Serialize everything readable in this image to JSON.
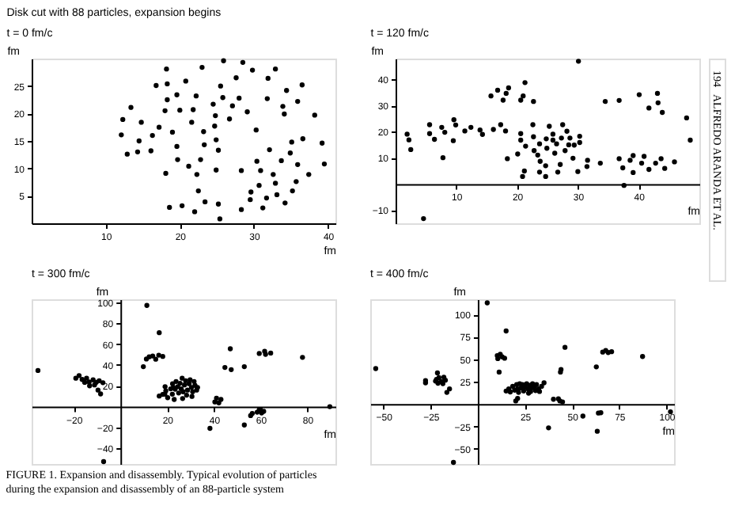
{
  "chart_data": [
    {
      "type": "scatter",
      "title": "Disk cut with 88 particles, expansion begins",
      "subtitle": "t = 0 fm/c",
      "xlabel": "fm",
      "ylabel": "fm",
      "color": "#000000",
      "marker": "circle",
      "grid": false,
      "xlim": [
        0,
        41
      ],
      "ylim": [
        0,
        30
      ],
      "xticks": [
        10,
        20,
        30,
        40
      ],
      "yticks": [
        5,
        10,
        15,
        20,
        25
      ],
      "x": [
        18.2,
        23.0,
        25.9,
        28.5,
        29.8,
        32.9,
        20.8,
        16.8,
        18.3,
        25.5,
        27.6,
        31.9,
        36.5,
        34.4,
        19.6,
        22.2,
        18.3,
        25.8,
        28.0,
        31.8,
        35.9,
        13.4,
        18.0,
        20.0,
        21.8,
        24.5,
        27.1,
        29.1,
        33.9,
        34.1,
        38.2,
        12.3,
        14.8,
        21.6,
        24.8,
        26.7,
        17.2,
        19.0,
        23.2,
        24.7,
        30.3,
        12.1,
        16.3,
        14.5,
        19.6,
        23.3,
        24.9,
        35.1,
        36.6,
        39.2,
        12.9,
        14.3,
        16.1,
        25.2,
        32.1,
        34.9,
        19.7,
        22.8,
        30.4,
        33.7,
        21.2,
        24.9,
        28.3,
        30.9,
        35.9,
        39.5,
        18.1,
        22.3,
        32.6,
        37.4,
        30.7,
        32.9,
        35.7,
        22.5,
        29.6,
        35.2,
        33.1,
        29.5,
        31.7,
        23.4,
        25.2,
        34.2,
        18.6,
        20.3,
        22.0,
        28.3,
        31.2,
        25.4
      ],
      "values": [
        28.1,
        28.4,
        29.6,
        29.3,
        27.9,
        28.1,
        25.9,
        25.1,
        25.4,
        25.0,
        26.5,
        26.4,
        25.2,
        24.2,
        23.4,
        23.2,
        22.5,
        22.9,
        22.8,
        22.7,
        22.2,
        21.1,
        20.5,
        20.6,
        20.7,
        21.7,
        21.4,
        20.3,
        21.3,
        19.9,
        19.7,
        18.9,
        18.4,
        18.4,
        19.6,
        19.0,
        17.5,
        16.6,
        16.7,
        17.7,
        17.0,
        16.1,
        16.0,
        15.0,
        14.0,
        14.3,
        15.2,
        14.8,
        15.4,
        14.6,
        12.6,
        13.0,
        13.2,
        13.3,
        13.4,
        12.8,
        11.6,
        11.6,
        11.3,
        11.4,
        10.4,
        9.7,
        9.6,
        9.6,
        10.7,
        10.8,
        9.1,
        8.9,
        8.9,
        8.9,
        6.9,
        7.3,
        7.6,
        5.9,
        5.7,
        5.9,
        5.2,
        4.3,
        4.6,
        3.9,
        3.5,
        3.7,
        2.9,
        3.2,
        2.1,
        2.5,
        2.8,
        0.8
      ]
    },
    {
      "type": "scatter",
      "title": "t = 120 fm/c",
      "xlabel": "fm",
      "ylabel": "fm",
      "color": "#000000",
      "marker": "circle",
      "grid": false,
      "xlim": [
        0,
        50
      ],
      "ylim": [
        -15,
        48
      ],
      "xticks": [
        10,
        20,
        30,
        40
      ],
      "yticks": [
        -10,
        10,
        20,
        30,
        40
      ],
      "x": [
        1.9,
        2.2,
        2.5,
        4.6,
        5.6,
        5.6,
        6.4,
        7.8,
        7.6,
        8.1,
        9.6,
        9.9,
        9.5,
        11.4,
        12.4,
        13.9,
        14.3,
        15.7,
        16.1,
        16.8,
        17.3,
        17.7,
        18.2,
        18.6,
        18.1,
        18.4,
        21.3,
        20.6,
        21.0,
        22.7,
        20.6,
        20.6,
        21.4,
        20.1,
        21.2,
        20.9,
        22.6,
        22.7,
        22.8,
        23.4,
        23.7,
        23.8,
        23.7,
        24.8,
        24.9,
        24.7,
        24.7,
        25.3,
        25.9,
        25.9,
        26.2,
        26.5,
        26.7,
        27.1,
        27.5,
        27.3,
        27.9,
        28.2,
        28.5,
        28.7,
        29.2,
        29.4,
        30.1,
        30.3,
        30.3,
        30.0,
        31.6,
        31.5,
        33.7,
        34.5,
        36.8,
        36.8,
        37.4,
        37.6,
        38.6,
        39.1,
        39.1,
        40.1,
        40.5,
        40.9,
        41.7,
        41.7,
        43.1,
        43.2,
        43.9,
        42.8,
        43.7,
        44.3,
        45.9,
        47.9,
        48.5
      ],
      "values": [
        19.1,
        16.9,
        13.2,
        -13.2,
        22.7,
        19.3,
        17.1,
        10.1,
        21.7,
        19.8,
        24.6,
        22.6,
        16.6,
        20.3,
        21.7,
        20.7,
        19.0,
        33.7,
        20.9,
        35.9,
        22.7,
        32.1,
        34.7,
        36.8,
        20.3,
        9.7,
        38.8,
        32.1,
        33.7,
        31.6,
        19.3,
        16.8,
        14.5,
        11.5,
        5.0,
        2.9,
        22.7,
        18.1,
        12.8,
        11.1,
        15.4,
        8.7,
        4.6,
        17.3,
        13.7,
        7.0,
        2.9,
        22.1,
        19.1,
        16.8,
        11.8,
        15.4,
        4.6,
        7.5,
        22.7,
        17.6,
        12.8,
        20.2,
        15.0,
        17.6,
        9.9,
        14.9,
        47.0,
        18.3,
        15.9,
        4.8,
        9.1,
        6.7,
        8.0,
        31.6,
        32.0,
        9.7,
        6.2,
        -0.5,
        9.1,
        10.9,
        4.4,
        34.2,
        8.0,
        10.6,
        29.1,
        5.6,
        34.7,
        31.1,
        27.4,
        8.0,
        9.7,
        6.0,
        8.5,
        25.3,
        16.8
      ]
    },
    {
      "type": "scatter",
      "title": "t = 300 fm/c",
      "xlabel": "fm",
      "ylabel": "fm",
      "color": "#000000",
      "marker": "circle",
      "grid": false,
      "xlim": [
        -38,
        92
      ],
      "ylim": [
        -55,
        103
      ],
      "xticks": [
        -20,
        20,
        40,
        60,
        80
      ],
      "yticks": [
        -40,
        -20,
        20,
        40,
        60,
        80,
        100
      ],
      "x": [
        -35.3,
        11.3,
        16.6,
        9.8,
        11.1,
        12.3,
        13.8,
        15.1,
        16.4,
        18.1,
        -19.1,
        -17.7,
        -16.4,
        -14.5,
        -13.4,
        -11.7,
        -10.4,
        -9.1,
        -7.5,
        -13.2,
        -11.1,
        -9.6,
        -8.5,
        -15.3,
        16.6,
        18.1,
        19.4,
        19.1,
        20.2,
        21.5,
        22.2,
        22.3,
        23.0,
        23.4,
        23.8,
        24.5,
        24.9,
        25.5,
        26.0,
        26.4,
        26.8,
        27.4,
        27.9,
        28.3,
        28.7,
        29.4,
        29.8,
        30.4,
        30.9,
        31.5,
        31.9,
        32.6,
        33.0,
        30.6,
        19.0,
        22.6,
        26.6,
        38.3,
        41.1,
        40.4,
        43.0,
        42.1,
        44.7,
        47.0,
        47.4,
        53.0,
        53.0,
        55.7,
        56.4,
        58.5,
        59.4,
        60.4,
        61.3,
        59.4,
        61.7,
        62.1,
        64.3,
        77.9,
        89.6,
        -7.2
      ],
      "values": [
        34.7,
        97.1,
        71.0,
        38.4,
        45.7,
        47.8,
        48.6,
        45.5,
        49.4,
        48.2,
        27.3,
        29.8,
        26.1,
        27.3,
        23.7,
        25.7,
        23.3,
        24.9,
        23.0,
        20.0,
        20.8,
        15.9,
        12.2,
        23.3,
        10.2,
        11.8,
        15.1,
        19.2,
        8.6,
        17.1,
        12.0,
        22.0,
        6.9,
        16.7,
        24.1,
        19.2,
        13.1,
        22.4,
        17.1,
        27.3,
        14.3,
        20.8,
        24.9,
        11.0,
        15.9,
        22.0,
        25.7,
        18.4,
        14.3,
        24.1,
        20.4,
        15.9,
        18.4,
        9.8,
        12.0,
        18.4,
        7.8,
        -20.8,
        8.2,
        4.5,
        6.9,
        3.7,
        37.6,
        55.5,
        35.5,
        38.4,
        -17.6,
        -8.6,
        -6.5,
        -5.3,
        -2.9,
        -6.0,
        -4.5,
        51.0,
        53.1,
        50.2,
        51.4,
        47.3,
        0,
        -52.7
      ]
    },
    {
      "type": "scatter",
      "title": "t = 400 fm/c",
      "xlabel": "fm",
      "ylabel": "fm",
      "color": "#000000",
      "marker": "circle",
      "grid": false,
      "xlim": [
        -57,
        104
      ],
      "ylim": [
        -67,
        117
      ],
      "xticks": [
        -50,
        -25,
        25,
        50,
        75,
        100
      ],
      "yticks": [
        -50,
        -25,
        25,
        50,
        75,
        100
      ],
      "annotations": [
        "FIGURE 1. Expansion and disassembly. Typical evolution of particles during the expansion and disassembly of an 88-particle system",
        "194",
        "ALFREDO ARANDA ET AL."
      ],
      "x": [
        -54.1,
        5.0,
        15.0,
        11.3,
        10.3,
        11.9,
        12.9,
        14.2,
        10.6,
        -27.7,
        -27.7,
        -21.4,
        -21.9,
        -20.6,
        -19.3,
        -18.0,
        -17.2,
        -21.1,
        -18.5,
        -22.4,
        -16.4,
        -15.0,
        15.0,
        16.4,
        17.2,
        18.5,
        19.5,
        20.6,
        21.1,
        21.6,
        22.2,
        22.9,
        23.7,
        24.3,
        25.1,
        25.9,
        26.6,
        27.4,
        28.0,
        28.5,
        29.0,
        29.8,
        30.6,
        31.1,
        32.2,
        33.8,
        35.1,
        21.1,
        20.1,
        32.7,
        26.9,
        37.5,
        40.1,
        42.7,
        43.5,
        44.9,
        43.8,
        44.1,
        46.2,
        55.7,
        62.8,
        63.3,
        63.9,
        65.2,
        66.2,
        67.8,
        69.1,
        70.9,
        87.3,
        102.1,
        -12.9
      ],
      "values": [
        39.6,
        113.0,
        81.6,
        35.7,
        54.1,
        55.6,
        52.7,
        51.2,
        50.7,
        26.1,
        23.7,
        34.8,
        27.5,
        29.5,
        25.1,
        30.0,
        26.6,
        23.2,
        22.7,
        25.6,
        13.0,
        16.9,
        14.5,
        16.9,
        13.5,
        19.8,
        15.5,
        21.7,
        16.9,
        13.0,
        22.7,
        17.9,
        21.7,
        14.5,
        18.8,
        22.7,
        16.9,
        20.8,
        14.0,
        17.9,
        22.7,
        18.8,
        15.0,
        21.7,
        16.9,
        19.8,
        23.7,
        6.3,
        3.4,
        14.0,
        12.1,
        -26.6,
        5.3,
        5.8,
        3.4,
        2.4,
        35.7,
        38.6,
        63.3,
        -13.5,
        41.5,
        -30.4,
        -10.1,
        -9.7,
        58.0,
        59.9,
        57.5,
        58.5,
        53.1,
        -8.7,
        -65.2
      ]
    }
  ]
}
